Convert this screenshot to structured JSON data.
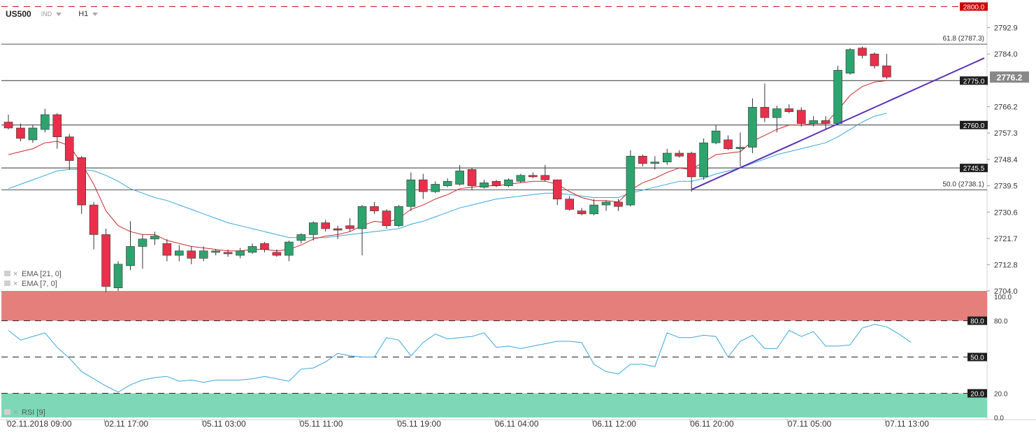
{
  "header": {
    "symbol": "US500",
    "instrument_type": "IND",
    "timeframe": "H1"
  },
  "indicators": {
    "ema21": "EMA [21, 0]",
    "ema7": "EMA [7, 0]",
    "rsi": "RSI [9]"
  },
  "colors": {
    "bull": "#2ea36e",
    "bear": "#e8304a",
    "ema21": "#3aa7dc",
    "ema7": "#cc2a2a",
    "trendline": "#5a31b8",
    "rsi_line": "#3aa7dc",
    "overbought_zone": "#e57f7b",
    "oversold_zone": "#7ed8b8",
    "last_price_bg": "#888888"
  },
  "chart_data": {
    "type": "candlestick",
    "price_axis": {
      "ylim": [
        2703.5,
        2797.5
      ],
      "ticks": [
        2792.9,
        2784.0,
        2766.2,
        2757.3,
        2748.4,
        2739.5,
        2730.6,
        2721.7,
        2712.8,
        2704.0
      ]
    },
    "x_axis": {
      "labels": [
        {
          "label": "02.11.2018  09:00",
          "bar": 0
        },
        {
          "label": "02.11  17:00",
          "bar": 8
        },
        {
          "label": "05.11  03:00",
          "bar": 16
        },
        {
          "label": "05.11  11:00",
          "bar": 24
        },
        {
          "label": "05.11  19:00",
          "bar": 32
        },
        {
          "label": "06.11  04:00",
          "bar": 40
        },
        {
          "label": "06.11  12:00",
          "bar": 48
        },
        {
          "label": "06.11  20:00",
          "bar": 56
        },
        {
          "label": "07.11  05:00",
          "bar": 64
        },
        {
          "label": "07.11  13:00",
          "bar": 72
        }
      ]
    },
    "candles": [
      {
        "o": 2761,
        "h": 2763.5,
        "l": 2758.5,
        "c": 2759
      },
      {
        "o": 2759,
        "h": 2760.5,
        "l": 2754.5,
        "c": 2755.5
      },
      {
        "o": 2755,
        "h": 2760,
        "l": 2754,
        "c": 2759
      },
      {
        "o": 2758.5,
        "h": 2765.5,
        "l": 2757.5,
        "c": 2763.5
      },
      {
        "o": 2763.5,
        "h": 2764,
        "l": 2752,
        "c": 2756
      },
      {
        "o": 2756,
        "h": 2757,
        "l": 2745,
        "c": 2748
      },
      {
        "o": 2749,
        "h": 2749.5,
        "l": 2730,
        "c": 2733
      },
      {
        "o": 2733,
        "h": 2734,
        "l": 2718,
        "c": 2723
      },
      {
        "o": 2723,
        "h": 2725,
        "l": 2703.5,
        "c": 2705.5
      },
      {
        "o": 2705,
        "h": 2714,
        "l": 2704,
        "c": 2713
      },
      {
        "o": 2712.5,
        "h": 2727.5,
        "l": 2711,
        "c": 2719
      },
      {
        "o": 2719,
        "h": 2723,
        "l": 2711.5,
        "c": 2721.5
      },
      {
        "o": 2721.5,
        "h": 2724,
        "l": 2719.5,
        "c": 2722.5
      },
      {
        "o": 2720,
        "h": 2721.5,
        "l": 2714,
        "c": 2716
      },
      {
        "o": 2716,
        "h": 2719.5,
        "l": 2714,
        "c": 2717.5
      },
      {
        "o": 2717.5,
        "h": 2719,
        "l": 2713,
        "c": 2715
      },
      {
        "o": 2715,
        "h": 2719,
        "l": 2714,
        "c": 2717.5
      },
      {
        "o": 2717,
        "h": 2718,
        "l": 2716,
        "c": 2717.5
      },
      {
        "o": 2717,
        "h": 2718,
        "l": 2715.5,
        "c": 2716.5
      },
      {
        "o": 2716,
        "h": 2718.5,
        "l": 2715,
        "c": 2717.5
      },
      {
        "o": 2717,
        "h": 2720,
        "l": 2716.5,
        "c": 2719
      },
      {
        "o": 2720,
        "h": 2720.5,
        "l": 2717,
        "c": 2718
      },
      {
        "o": 2717,
        "h": 2718,
        "l": 2715.5,
        "c": 2716
      },
      {
        "o": 2716,
        "h": 2721,
        "l": 2714,
        "c": 2720.5
      },
      {
        "o": 2721,
        "h": 2723.5,
        "l": 2720,
        "c": 2723
      },
      {
        "o": 2723,
        "h": 2727.5,
        "l": 2721,
        "c": 2727
      },
      {
        "o": 2727,
        "h": 2728,
        "l": 2724,
        "c": 2725
      },
      {
        "o": 2725,
        "h": 2726,
        "l": 2721.5,
        "c": 2724.5
      },
      {
        "o": 2726,
        "h": 2728.5,
        "l": 2724,
        "c": 2725
      },
      {
        "o": 2725,
        "h": 2733,
        "l": 2716,
        "c": 2732.5
      },
      {
        "o": 2732.5,
        "h": 2734,
        "l": 2730,
        "c": 2731
      },
      {
        "o": 2731,
        "h": 2731.5,
        "l": 2725,
        "c": 2726
      },
      {
        "o": 2726,
        "h": 2733,
        "l": 2725.5,
        "c": 2732.5
      },
      {
        "o": 2732.5,
        "h": 2744,
        "l": 2731,
        "c": 2741.5
      },
      {
        "o": 2741.5,
        "h": 2743.5,
        "l": 2735,
        "c": 2737.5
      },
      {
        "o": 2737.5,
        "h": 2741,
        "l": 2737,
        "c": 2740
      },
      {
        "o": 2739.5,
        "h": 2742,
        "l": 2739,
        "c": 2741
      },
      {
        "o": 2740,
        "h": 2746.5,
        "l": 2739.5,
        "c": 2744.5
      },
      {
        "o": 2745,
        "h": 2745.5,
        "l": 2738,
        "c": 2739.5
      },
      {
        "o": 2739,
        "h": 2741.5,
        "l": 2738.5,
        "c": 2740.5
      },
      {
        "o": 2741,
        "h": 2741.5,
        "l": 2739,
        "c": 2739.5
      },
      {
        "o": 2739.5,
        "h": 2742,
        "l": 2739,
        "c": 2741.5
      },
      {
        "o": 2741,
        "h": 2743.5,
        "l": 2740.5,
        "c": 2743
      },
      {
        "o": 2743,
        "h": 2744,
        "l": 2742,
        "c": 2742.5
      },
      {
        "o": 2743,
        "h": 2746.5,
        "l": 2741,
        "c": 2741.5
      },
      {
        "o": 2741.5,
        "h": 2741.5,
        "l": 2733,
        "c": 2735
      },
      {
        "o": 2735,
        "h": 2736,
        "l": 2731,
        "c": 2731.5
      },
      {
        "o": 2731,
        "h": 2732,
        "l": 2729.5,
        "c": 2730
      },
      {
        "o": 2730,
        "h": 2735,
        "l": 2729.5,
        "c": 2733
      },
      {
        "o": 2733,
        "h": 2734.5,
        "l": 2731,
        "c": 2734
      },
      {
        "o": 2734,
        "h": 2735,
        "l": 2731,
        "c": 2732.5
      },
      {
        "o": 2733,
        "h": 2751.5,
        "l": 2732.5,
        "c": 2749.5
      },
      {
        "o": 2749.5,
        "h": 2750,
        "l": 2746,
        "c": 2747
      },
      {
        "o": 2747,
        "h": 2749.5,
        "l": 2745,
        "c": 2747.5
      },
      {
        "o": 2747.5,
        "h": 2752,
        "l": 2746.5,
        "c": 2750.5
      },
      {
        "o": 2750.5,
        "h": 2751.5,
        "l": 2749,
        "c": 2749.5
      },
      {
        "o": 2750.5,
        "h": 2751,
        "l": 2737.5,
        "c": 2742.5
      },
      {
        "o": 2742.5,
        "h": 2755.5,
        "l": 2741.5,
        "c": 2754
      },
      {
        "o": 2754,
        "h": 2760,
        "l": 2753.5,
        "c": 2758
      },
      {
        "o": 2755,
        "h": 2756.5,
        "l": 2751.5,
        "c": 2752
      },
      {
        "o": 2752,
        "h": 2757.5,
        "l": 2746,
        "c": 2752.5
      },
      {
        "o": 2752.5,
        "h": 2769,
        "l": 2750.5,
        "c": 2766
      },
      {
        "o": 2766,
        "h": 2774,
        "l": 2761,
        "c": 2762.5
      },
      {
        "o": 2762.5,
        "h": 2766.5,
        "l": 2757.5,
        "c": 2765.5
      },
      {
        "o": 2765.5,
        "h": 2767,
        "l": 2764,
        "c": 2764.5
      },
      {
        "o": 2765,
        "h": 2766,
        "l": 2759.5,
        "c": 2760.5
      },
      {
        "o": 2760.5,
        "h": 2763,
        "l": 2759.5,
        "c": 2761.5
      },
      {
        "o": 2761.5,
        "h": 2763,
        "l": 2758.5,
        "c": 2760.5
      },
      {
        "o": 2760.5,
        "h": 2780,
        "l": 2760,
        "c": 2778.5
      },
      {
        "o": 2777.5,
        "h": 2786,
        "l": 2777,
        "c": 2785.5
      },
      {
        "o": 2786,
        "h": 2786.5,
        "l": 2782.5,
        "c": 2783.5
      },
      {
        "o": 2784,
        "h": 2784.5,
        "l": 2779,
        "c": 2780
      },
      {
        "o": 2780,
        "h": 2784,
        "l": 2775.5,
        "c": 2776.2
      }
    ],
    "ema7": [
      2750,
      2751,
      2752,
      2754,
      2754.5,
      2753,
      2747,
      2740,
      2731,
      2726,
      2724,
      2723,
      2723,
      2721,
      2720,
      2719,
      2718.5,
      2718,
      2717.5,
      2717.5,
      2718,
      2718,
      2717.5,
      2718,
      2719.5,
      2721.5,
      2722.5,
      2723,
      2724,
      2726,
      2727.5,
      2727,
      2728.5,
      2731.5,
      2733,
      2735,
      2736.5,
      2738.5,
      2739,
      2739.5,
      2739.5,
      2740,
      2740.5,
      2741,
      2741,
      2740,
      2737.5,
      2735.5,
      2734.5,
      2734.5,
      2734,
      2738,
      2740.5,
      2742,
      2744,
      2745.5,
      2745,
      2747.5,
      2750,
      2750.5,
      2751,
      2754.5,
      2756.5,
      2758.5,
      2760,
      2760,
      2760.5,
      2760.5,
      2765,
      2770,
      2773,
      2774.5,
      2775
    ],
    "ema21": [
      2738.5,
      2740,
      2741.5,
      2743,
      2744.5,
      2745,
      2745,
      2744.5,
      2743,
      2741,
      2738.5,
      2737,
      2735.5,
      2734.5,
      2733,
      2731.5,
      2730,
      2728.5,
      2727,
      2726,
      2725,
      2724,
      2723,
      2722,
      2722,
      2722,
      2722,
      2722.5,
      2723,
      2723.5,
      2724,
      2724.5,
      2725,
      2726.5,
      2727.5,
      2729,
      2730.5,
      2732,
      2733,
      2734,
      2735,
      2735.5,
      2736,
      2736.5,
      2737,
      2737,
      2736.5,
      2736,
      2735.5,
      2735.5,
      2735.5,
      2737,
      2738,
      2739,
      2740,
      2741,
      2741,
      2742,
      2743.5,
      2744.5,
      2745.5,
      2747,
      2748.5,
      2750,
      2751,
      2752,
      2753,
      2754,
      2756,
      2758.5,
      2761,
      2763,
      2764
    ],
    "trendline": {
      "from": {
        "bar": 56,
        "price": 2738.2
      },
      "to": {
        "bar": 80,
        "price": 2782.6
      }
    },
    "horizontal_levels": [
      {
        "price": 2800.0,
        "label": "2800.0",
        "style": "dashed",
        "color": "#cc0000",
        "label_bg": "#cc0000",
        "label_color": "#ffffff"
      },
      {
        "price": 2787.3,
        "label": "61.8 (2787.3)",
        "style": "solid",
        "color": "#555555",
        "label_bg": "",
        "label_color": "#333333"
      },
      {
        "price": 2775.0,
        "label": "2775.0",
        "style": "solid",
        "color": "#333333",
        "label_bg": "#1e1e1e",
        "label_color": "#ffffff"
      },
      {
        "price": 2760.0,
        "label": "2760.0",
        "style": "solid",
        "color": "#333333",
        "label_bg": "#1e1e1e",
        "label_color": "#ffffff"
      },
      {
        "price": 2745.5,
        "label": "2745.5",
        "style": "solid",
        "color": "#333333",
        "label_bg": "#1e1e1e",
        "label_color": "#ffffff"
      },
      {
        "price": 2738.1,
        "label": "50.0 (2738.1)",
        "style": "solid",
        "color": "#555555",
        "label_bg": "",
        "label_color": "#333333"
      }
    ],
    "last_price": 2776.2,
    "rsi": {
      "ylim": [
        0,
        100
      ],
      "ticks": [
        100.0,
        80.0,
        20.0,
        0.0
      ],
      "levels": [
        {
          "value": 80.0,
          "label": "80.0"
        },
        {
          "value": 50.0,
          "label": "50.0"
        },
        {
          "value": 20.0,
          "label": "20.0"
        }
      ],
      "values": [
        72,
        64,
        67,
        70,
        58,
        49,
        38,
        32,
        26,
        21,
        27,
        31,
        33,
        34,
        30,
        31,
        29,
        31,
        31,
        31,
        32,
        34,
        32,
        30,
        40,
        41,
        46,
        53,
        51,
        50,
        50,
        66,
        64,
        51,
        62,
        69,
        65,
        66,
        67,
        70,
        58,
        59,
        57,
        59,
        61,
        63,
        63,
        62,
        44,
        38,
        36,
        44,
        44,
        42,
        70,
        66,
        66,
        68,
        67,
        50,
        63,
        68,
        57,
        57,
        72,
        67,
        71,
        59,
        59,
        60,
        74,
        77,
        75,
        69,
        62
      ]
    }
  }
}
